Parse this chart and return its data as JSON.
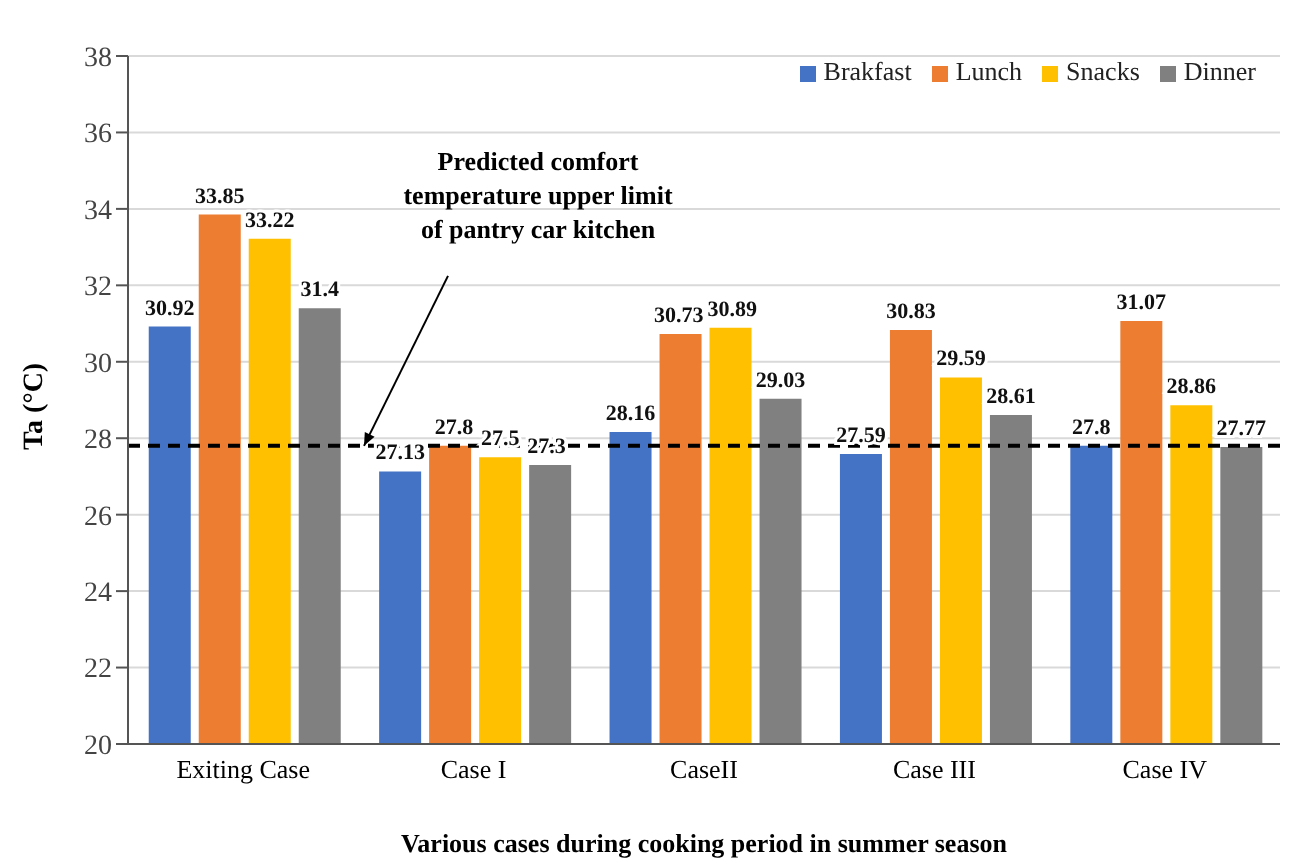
{
  "chart_data": {
    "type": "bar",
    "xlabel": "Various cases during cooking period in summer season",
    "ylabel": "Ta (°C)",
    "categories": [
      "Exiting Case",
      "Case I",
      "CaseII",
      "Case III",
      "Case IV"
    ],
    "series": [
      {
        "name": "Brakfast",
        "color": "#4472c4",
        "values": [
          30.92,
          27.13,
          28.16,
          27.59,
          27.8
        ]
      },
      {
        "name": "Lunch",
        "color": "#ed7d31",
        "values": [
          33.85,
          27.8,
          30.73,
          30.83,
          31.07
        ]
      },
      {
        "name": "Snacks",
        "color": "#ffc000",
        "values": [
          33.22,
          27.5,
          30.89,
          29.59,
          28.86
        ]
      },
      {
        "name": "Dinner",
        "color": "#808080",
        "values": [
          31.4,
          27.3,
          29.03,
          28.61,
          27.77
        ]
      }
    ],
    "ylim": [
      20,
      38
    ],
    "yticks": [
      20,
      22,
      24,
      26,
      28,
      30,
      32,
      34,
      36,
      38
    ],
    "grid": "y",
    "legend": "top right",
    "data_labels": true,
    "ref_lines": [
      {
        "axis": "y",
        "value": 27.8,
        "label": "Predicted comfort temperature upper limit of pantry car kitchen",
        "color": "#000000",
        "line_style": "dashed"
      }
    ]
  }
}
